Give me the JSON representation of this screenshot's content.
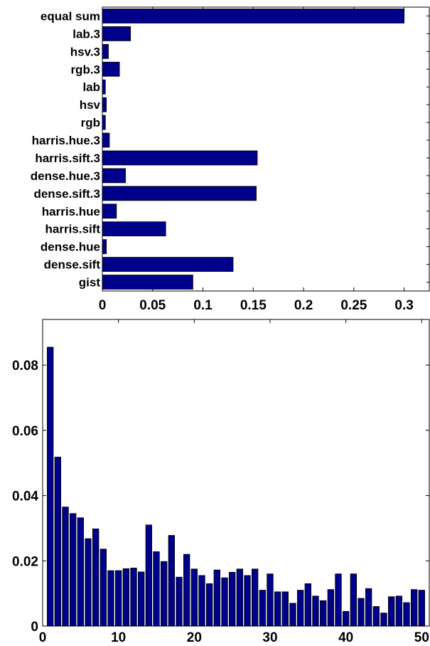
{
  "colors": {
    "bar_fill": "#00008b",
    "bar_stroke": "#000000",
    "axis": "#000000",
    "background": "#ffffff"
  },
  "chart_data": [
    {
      "type": "bar",
      "orientation": "horizontal",
      "categories": [
        "gist",
        "dense.sift",
        "dense.hue",
        "harris.sift",
        "harris.hue",
        "dense.sift.3",
        "dense.hue.3",
        "harris.sift.3",
        "harris.hue.3",
        "rgb",
        "hsv",
        "lab",
        "rgb.3",
        "hsv.3",
        "lab.3",
        "equal sum"
      ],
      "values": [
        0.09,
        0.13,
        0.004,
        0.063,
        0.014,
        0.153,
        0.023,
        0.154,
        0.007,
        0.003,
        0.004,
        0.003,
        0.017,
        0.006,
        0.028,
        0.3
      ],
      "xlim": [
        0,
        0.325
      ],
      "xticks": [
        0,
        0.05,
        0.1,
        0.15,
        0.2,
        0.25,
        0.3
      ],
      "xtick_labels": [
        "0",
        "0.05",
        "0.1",
        "0.15",
        "0.2",
        "0.25",
        "0.3"
      ],
      "grid": false
    },
    {
      "type": "bar",
      "orientation": "vertical",
      "x": [
        1,
        2,
        3,
        4,
        5,
        6,
        7,
        8,
        9,
        10,
        11,
        12,
        13,
        14,
        15,
        16,
        17,
        18,
        19,
        20,
        21,
        22,
        23,
        24,
        25,
        26,
        27,
        28,
        29,
        30,
        31,
        32,
        33,
        34,
        35,
        36,
        37,
        38,
        39,
        40,
        41,
        42,
        43,
        44,
        45,
        46,
        47,
        48,
        49,
        50
      ],
      "values": [
        0.0855,
        0.0518,
        0.0365,
        0.0345,
        0.0332,
        0.0268,
        0.0298,
        0.0236,
        0.017,
        0.017,
        0.0176,
        0.0178,
        0.0166,
        0.031,
        0.0228,
        0.0198,
        0.0278,
        0.015,
        0.022,
        0.0175,
        0.0155,
        0.013,
        0.0172,
        0.0148,
        0.0165,
        0.0175,
        0.0155,
        0.0175,
        0.011,
        0.016,
        0.0105,
        0.0105,
        0.007,
        0.011,
        0.013,
        0.0092,
        0.0078,
        0.0112,
        0.016,
        0.0045,
        0.016,
        0.0085,
        0.0115,
        0.006,
        0.004,
        0.009,
        0.0092,
        0.0072,
        0.0112,
        0.011
      ],
      "xlim": [
        0,
        51
      ],
      "ylim": [
        0,
        0.094
      ],
      "xticks": [
        0,
        10,
        20,
        30,
        40,
        50
      ],
      "xtick_labels": [
        "0",
        "10",
        "20",
        "30",
        "40",
        "50"
      ],
      "yticks": [
        0,
        0.02,
        0.04,
        0.06,
        0.08
      ],
      "ytick_labels": [
        "0",
        "0.02",
        "0.04",
        "0.06",
        "0.08"
      ],
      "grid": false
    }
  ]
}
